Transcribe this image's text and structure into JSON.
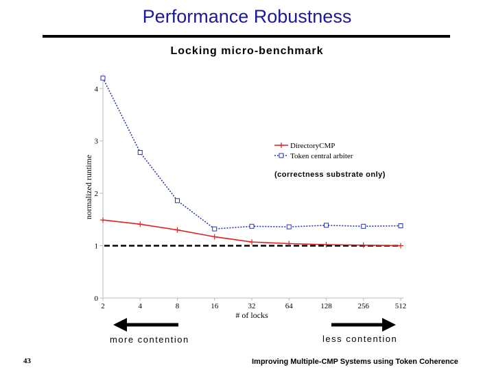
{
  "slide": {
    "title": "Performance Robustness",
    "number": "43",
    "footer": "Improving Multiple-CMP Systems using Token Coherence"
  },
  "annotations": {
    "more_contention": "more contention",
    "less_contention": "less contention",
    "note": "(correctness substrate only)"
  },
  "colors": {
    "title": "#1a1a99",
    "directory": "#dd2222",
    "token": "#2233bb",
    "axis": "#bbbbbb"
  },
  "chart_data": {
    "type": "line",
    "title": "Locking micro-benchmark",
    "xlabel": "# of locks",
    "ylabel": "normalized runtime",
    "categories": [
      "2",
      "4",
      "8",
      "16",
      "32",
      "64",
      "128",
      "256",
      "512"
    ],
    "yticks": [
      "0",
      "1",
      "2",
      "3",
      "4"
    ],
    "ylim": [
      0,
      4.2
    ],
    "baseline": 1,
    "series": [
      {
        "name": "DirectoryCMP",
        "color": "#dd2222",
        "marker": "plus",
        "dash": "",
        "values": [
          1.49,
          1.41,
          1.3,
          1.17,
          1.07,
          1.04,
          1.02,
          1.01,
          1.0
        ]
      },
      {
        "name": "Token central arbiter",
        "color": "#2233bb",
        "marker": "square",
        "dash": "2,2",
        "values": [
          4.2,
          2.78,
          1.86,
          1.32,
          1.37,
          1.36,
          1.39,
          1.37,
          1.38
        ]
      }
    ],
    "legend_position": "top-right"
  }
}
